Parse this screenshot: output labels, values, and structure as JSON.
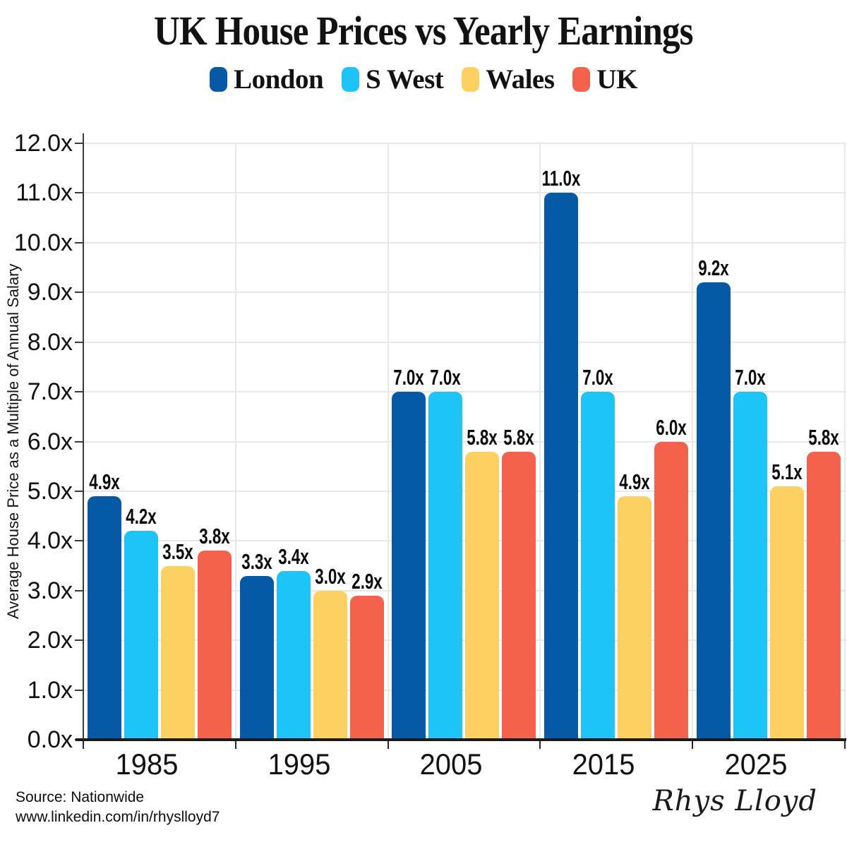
{
  "title": "UK House Prices vs Yearly Earnings",
  "y_axis_title": "Average House Price as a Multiple of Annual Salary",
  "footer": {
    "source_line1": "Source: Nationwide",
    "source_line2": "www.linkedin.com/in/rhyslloyd7",
    "signature": "Rhys Lloyd"
  },
  "colors": {
    "london": "#0559A5",
    "s_west": "#1EC3F7",
    "wales": "#FCD162",
    "uk": "#F4614D",
    "gridline": "#E8E8E8",
    "axis": "#1B1B1B"
  },
  "chart_data": {
    "type": "bar",
    "title": "UK House Prices vs Yearly Earnings",
    "ylabel": "Average House Price as a Multiple of Annual Salary",
    "xlabel": "",
    "categories": [
      "1985",
      "1995",
      "2005",
      "2015",
      "2025"
    ],
    "series": [
      {
        "name": "London",
        "color": "#0559A5",
        "values": [
          4.9,
          3.3,
          7.0,
          11.0,
          9.2
        ]
      },
      {
        "name": "S West",
        "color": "#1EC3F7",
        "values": [
          4.2,
          3.4,
          7.0,
          7.0,
          7.0
        ]
      },
      {
        "name": "Wales",
        "color": "#FCD162",
        "values": [
          3.5,
          3.0,
          5.8,
          4.9,
          5.1
        ]
      },
      {
        "name": "UK",
        "color": "#F4614D",
        "values": [
          3.8,
          2.9,
          5.8,
          6.0,
          5.8
        ]
      }
    ],
    "value_label_suffix": "x",
    "ylim": [
      0,
      12
    ],
    "ytick_step": 1.0,
    "ytick_suffix": "x",
    "grid": true,
    "legend_position": "top"
  }
}
